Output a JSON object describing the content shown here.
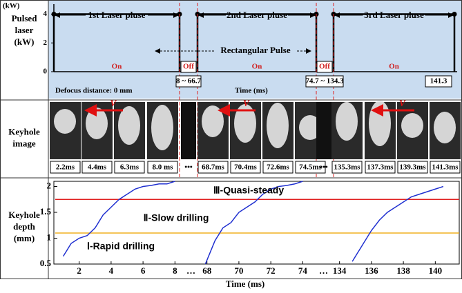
{
  "row_labels": [
    [
      "Pulsed",
      "laser",
      "(kW)"
    ],
    [
      "Keyhole",
      "image"
    ],
    [
      "Keyhole",
      "depth",
      "(mm)"
    ]
  ],
  "pulse": {
    "unit_label": "(kW)",
    "yticks": [
      0,
      2,
      4
    ],
    "ylim": [
      0,
      4.6
    ],
    "level": 4,
    "pulse_titles": [
      "1st Laser pluse",
      "2nd Laser pluse",
      "3rd Laser pluse"
    ],
    "on_label": "On",
    "off_label": "Off",
    "shape_label": "Rectangular Pulse",
    "defocus": "Defocus distance: 0 mm",
    "time_label": "Time (ms)",
    "time_boxes": [
      "8 ~ 66.7",
      "74.7 ~ 134.3",
      "141.3"
    ]
  },
  "images": {
    "times": [
      "2.2ms",
      "4.4ms",
      "6.3ms",
      "8.0 ms",
      "•••",
      "68.7ms",
      "70.4ms",
      "72.6ms",
      "74.5ms",
      "•••",
      "135.3ms",
      "137.3ms",
      "139.3ms",
      "141.3ms"
    ],
    "velocity_label": "V"
  },
  "chart_data": {
    "type": "line",
    "x_label": "Time (ms)",
    "x_break_label": "…",
    "xlim": [
      [
        0.5,
        8.7
      ],
      [
        67.3,
        75
      ],
      [
        133.3,
        141.5
      ]
    ],
    "ylim": [
      0.5,
      2.1
    ],
    "xticks": [
      2,
      4,
      6,
      8,
      68,
      70,
      72,
      74,
      134,
      136,
      138,
      140
    ],
    "yticks": [
      0.5,
      1,
      1.5,
      2
    ],
    "stage_lines": [
      {
        "value": 1.75,
        "color": "#e02020"
      },
      {
        "value": 1.1,
        "color": "#f0b020"
      }
    ],
    "stage_labels": [
      "Ⅲ-Quasi-steady",
      "Ⅱ-Slow drilling",
      "Ⅰ-Rapid drilling"
    ],
    "series": [
      {
        "color": "#1f2fd0",
        "x": [
          1,
          1.5,
          2,
          2.5,
          3,
          3.5,
          4,
          4.5,
          5,
          5.5,
          6,
          6.5,
          7,
          7.5,
          8,
          null,
          67.9,
          68.5,
          69,
          69.5,
          70,
          70.5,
          71,
          71.5,
          72,
          72.5,
          73,
          73.5,
          74,
          null,
          134.8,
          135.5,
          136,
          136.5,
          137,
          137.5,
          138,
          138.5,
          139,
          139.5,
          140,
          140.5
        ],
        "values": [
          0.65,
          0.9,
          1.0,
          1.05,
          1.2,
          1.45,
          1.6,
          1.75,
          1.85,
          1.95,
          2.0,
          2.02,
          2.05,
          2.05,
          2.1,
          null,
          0.5,
          0.95,
          1.2,
          1.3,
          1.5,
          1.6,
          1.7,
          1.85,
          1.95,
          2.0,
          2.02,
          2.05,
          2.1,
          null,
          0.55,
          0.9,
          1.15,
          1.35,
          1.5,
          1.6,
          1.7,
          1.8,
          1.85,
          1.9,
          1.95,
          2.0
        ]
      }
    ]
  }
}
